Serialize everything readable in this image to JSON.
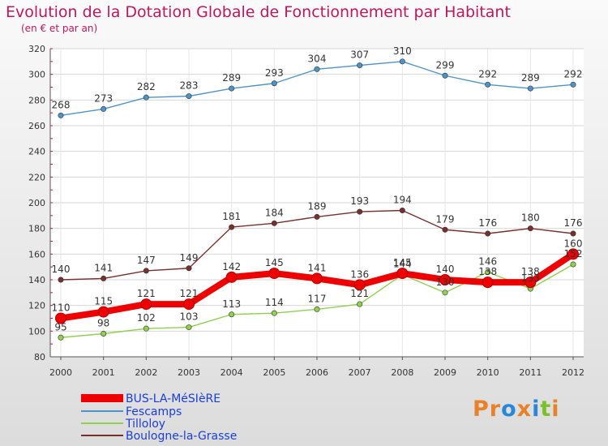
{
  "title": "Evolution de la Dotation Globale de Fonctionnement par Habitant",
  "subtitle": "(en € et par an)",
  "logo": {
    "parts": [
      "Pr",
      "o",
      "x",
      "i",
      "t",
      "i"
    ],
    "colors": [
      "#e8822a",
      "#2a86d6",
      "#e8822a",
      "#2a86d6",
      "#7bbf2a",
      "#e8822a"
    ]
  },
  "chart_data": {
    "type": "line",
    "title": "Evolution de la Dotation Globale de Fonctionnement par Habitant",
    "subtitle": "(en € et par an)",
    "xlabel": "",
    "ylabel": "",
    "categories": [
      "2000",
      "2001",
      "2002",
      "2003",
      "2004",
      "2005",
      "2006",
      "2007",
      "2008",
      "2009",
      "2010",
      "2011",
      "2012"
    ],
    "ylim": [
      80,
      320
    ],
    "yticks": [
      80,
      100,
      120,
      140,
      160,
      180,
      200,
      220,
      240,
      260,
      280,
      300,
      320
    ],
    "grid": true,
    "legend_position": "bottom-left",
    "series": [
      {
        "name": "BUS-LA-MéSIèRE",
        "color": "#ee0000",
        "bold": true,
        "values": [
          110,
          115,
          121,
          121,
          142,
          145,
          141,
          136,
          145,
          140,
          138,
          138,
          160
        ]
      },
      {
        "name": "Fescamps",
        "color": "#4e93c8",
        "bold": false,
        "values": [
          268,
          273,
          282,
          283,
          289,
          293,
          304,
          307,
          310,
          299,
          292,
          289,
          292
        ]
      },
      {
        "name": "Tilloloy",
        "color": "#8fd14f",
        "bold": false,
        "values": [
          95,
          98,
          102,
          103,
          113,
          114,
          117,
          121,
          144,
          130,
          146,
          133,
          152
        ]
      },
      {
        "name": "Boulogne-la-Grasse",
        "color": "#7a2f2f",
        "bold": false,
        "values": [
          140,
          141,
          147,
          149,
          181,
          184,
          189,
          193,
          194,
          179,
          176,
          180,
          176
        ]
      }
    ],
    "data_labels": [
      {
        "series": 0,
        "values": [
          110,
          115,
          121,
          121,
          142,
          145,
          141,
          136,
          145,
          140,
          138,
          138,
          160
        ]
      },
      {
        "series": 1,
        "values": [
          268,
          273,
          282,
          283,
          289,
          293,
          304,
          307,
          310,
          299,
          292,
          289,
          292
        ]
      },
      {
        "series": 2,
        "values": [
          95,
          98,
          102,
          103,
          113,
          114,
          117,
          121,
          144,
          130,
          146,
          133,
          152
        ]
      },
      {
        "series": 3,
        "values": [
          140,
          141,
          147,
          149,
          181,
          184,
          189,
          193,
          194,
          179,
          176,
          180,
          176
        ]
      }
    ]
  }
}
